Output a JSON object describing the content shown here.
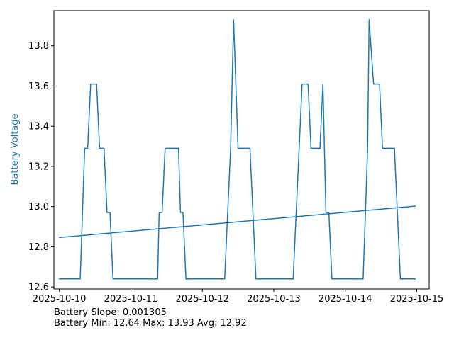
{
  "chart_data": {
    "type": "line",
    "ylabel": "Battery Voltage",
    "ylabel_color": "#1f77b4",
    "line_color": "#1f77b4",
    "grid": false,
    "xlim": [
      "2025-10-09T22:10:00",
      "2025-10-15T04:10:00"
    ],
    "ylim": [
      12.59,
      13.975
    ],
    "x_ticks": [
      "2025-10-10",
      "2025-10-11",
      "2025-10-12",
      "2025-10-13",
      "2025-10-14",
      "2025-10-15"
    ],
    "y_ticks": [
      "12.6",
      "12.8",
      "13.0",
      "13.2",
      "13.4",
      "13.6",
      "13.8"
    ],
    "series": [
      {
        "values": [
          [
            "2025-10-10T00:00:00",
            12.64
          ],
          [
            "2025-10-10T07:00:00",
            12.64
          ],
          [
            "2025-10-10T08:30:00",
            13.29
          ],
          [
            "2025-10-10T09:30:00",
            13.29
          ],
          [
            "2025-10-10T10:30:00",
            13.61
          ],
          [
            "2025-10-10T12:30:00",
            13.61
          ],
          [
            "2025-10-10T13:30:00",
            13.29
          ],
          [
            "2025-10-10T15:00:00",
            13.29
          ],
          [
            "2025-10-10T16:00:00",
            12.97
          ],
          [
            "2025-10-10T17:00:00",
            12.97
          ],
          [
            "2025-10-10T18:00:00",
            12.64
          ],
          [
            "2025-10-11T09:00:00",
            12.64
          ],
          [
            "2025-10-11T09:30:00",
            12.97
          ],
          [
            "2025-10-11T10:30:00",
            12.97
          ],
          [
            "2025-10-11T11:30:00",
            13.29
          ],
          [
            "2025-10-11T16:00:00",
            13.29
          ],
          [
            "2025-10-11T16:40:00",
            12.97
          ],
          [
            "2025-10-11T17:30:00",
            12.97
          ],
          [
            "2025-10-11T18:30:00",
            12.64
          ],
          [
            "2025-10-12T07:30:00",
            12.64
          ],
          [
            "2025-10-12T09:30:00",
            13.29
          ],
          [
            "2025-10-12T10:30:00",
            13.93
          ],
          [
            "2025-10-12T12:00:00",
            13.29
          ],
          [
            "2025-10-12T16:00:00",
            13.29
          ],
          [
            "2025-10-12T18:00:00",
            12.64
          ],
          [
            "2025-10-13T06:30:00",
            12.64
          ],
          [
            "2025-10-13T09:30:00",
            13.61
          ],
          [
            "2025-10-13T11:30:00",
            13.61
          ],
          [
            "2025-10-13T12:30:00",
            13.29
          ],
          [
            "2025-10-13T15:30:00",
            13.29
          ],
          [
            "2025-10-13T16:30:00",
            13.61
          ],
          [
            "2025-10-13T17:30:00",
            12.97
          ],
          [
            "2025-10-13T18:30:00",
            12.97
          ],
          [
            "2025-10-13T19:30:00",
            12.64
          ],
          [
            "2025-10-14T06:00:00",
            12.64
          ],
          [
            "2025-10-14T07:30:00",
            13.29
          ],
          [
            "2025-10-14T08:00:00",
            13.93
          ],
          [
            "2025-10-14T09:30:00",
            13.61
          ],
          [
            "2025-10-14T11:30:00",
            13.61
          ],
          [
            "2025-10-14T12:30:00",
            13.29
          ],
          [
            "2025-10-14T16:30:00",
            13.29
          ],
          [
            "2025-10-14T18:30:00",
            12.64
          ],
          [
            "2025-10-14T23:30:00",
            12.64
          ]
        ]
      },
      {
        "values": [
          [
            "2025-10-10T00:00:00",
            12.846
          ],
          [
            "2025-10-14T23:30:00",
            13.002
          ]
        ]
      }
    ]
  },
  "stats": {
    "slope_text": "Battery Slope: 0.001305",
    "minmax_text": "Battery Min: 12.64 Max: 13.93 Avg: 12.92"
  }
}
